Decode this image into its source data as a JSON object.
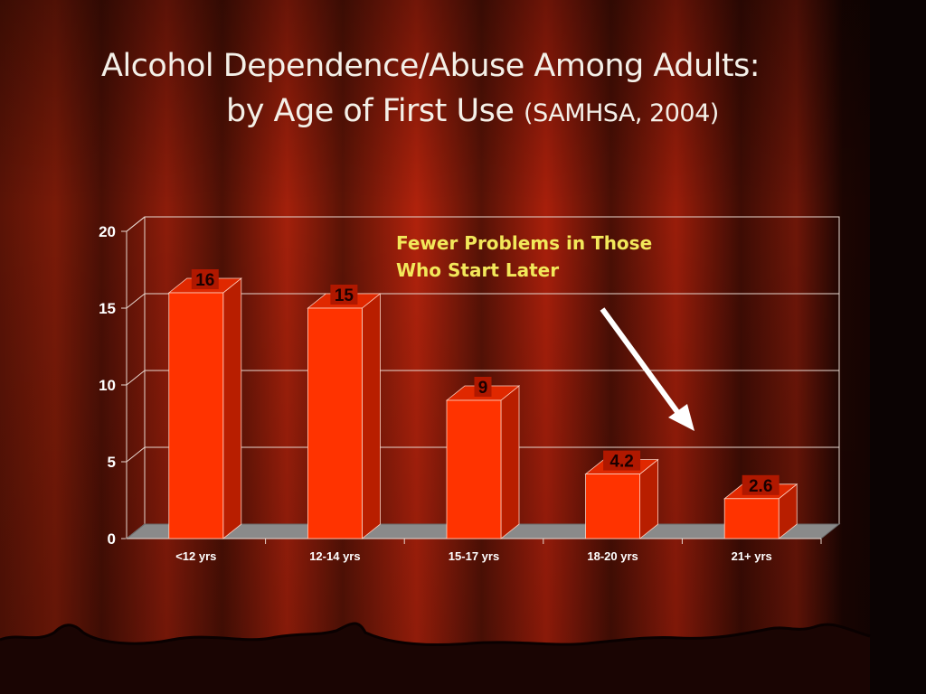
{
  "slide": {
    "title_line1": "Alcohol Dependence/Abuse Among Adults:",
    "title_line2": "by Age of First Use",
    "title_citation": "(SAMHSA, 2004)"
  },
  "colors": {
    "bar_front": "#ff3300",
    "bar_side": "#b81e00",
    "bar_top": "#e02800",
    "floor": "#8a8a8a",
    "gridline": "#e8d8d0",
    "annotation_text": "#f2e85a",
    "arrow": "#ffffff",
    "data_label_bg": "#b01800"
  },
  "chart_data": {
    "type": "bar",
    "categories": [
      "<12 yrs",
      "12-14 yrs",
      "15-17 yrs",
      "18-20 yrs",
      "21+ yrs"
    ],
    "values": [
      16,
      15,
      9,
      4.2,
      2.6
    ],
    "data_labels": [
      "16",
      "15",
      "9",
      "4.2",
      "2.6"
    ],
    "yticks": [
      "0",
      "5",
      "10",
      "15",
      "20"
    ],
    "ylim": [
      0,
      20
    ],
    "grid": true,
    "three_d": true,
    "annotation": {
      "line1": "Fewer Problems in Those",
      "line2": "Who Start Later"
    }
  }
}
